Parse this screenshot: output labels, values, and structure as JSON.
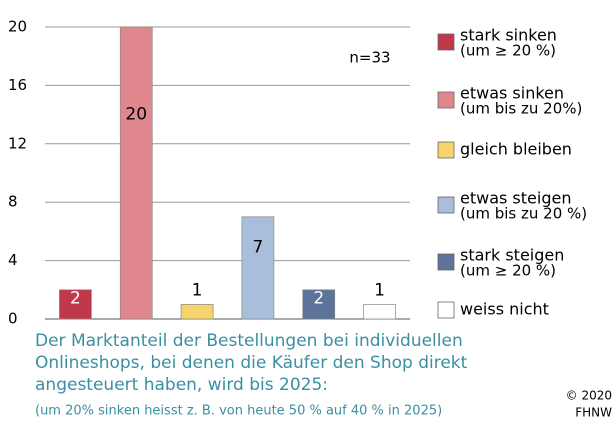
{
  "chart_data": {
    "type": "bar",
    "categories": [
      "stark sinken",
      "etwas sinken",
      "gleich bleiben",
      "etwas steigen",
      "stark steigen",
      "weiss nicht"
    ],
    "category_notes": [
      "(um ≥ 20 %)",
      "(um bis zu 20%)",
      null,
      "(um bis zu 20 %)",
      "(um ≥ 20 %)",
      null
    ],
    "values": [
      2,
      20,
      1,
      7,
      2,
      1
    ],
    "colors": [
      "#c0394a",
      "#e0878e",
      "#f6d36b",
      "#a9bedb",
      "#5c7499",
      "#ffffff"
    ],
    "label_colors": [
      "#ffffff",
      "#000000",
      "#000000",
      "#000000",
      "#ffffff",
      "#000000"
    ],
    "ylim": [
      0,
      20
    ],
    "yticks": [
      0,
      4,
      8,
      12,
      16,
      20
    ],
    "grid": true,
    "annotation": "n=33",
    "caption": [
      "Der Marktanteil der Bestellungen bei individuellen",
      "Onlineshops, bei denen die Käufer den Shop direkt",
      "angesteuert haben, wird bis 2025:"
    ],
    "footnote": "(um 20% sinken heisst z. B. von heute 50 % auf 40 % in 2025)",
    "credit": [
      "© 2020",
      "FHNW"
    ]
  }
}
